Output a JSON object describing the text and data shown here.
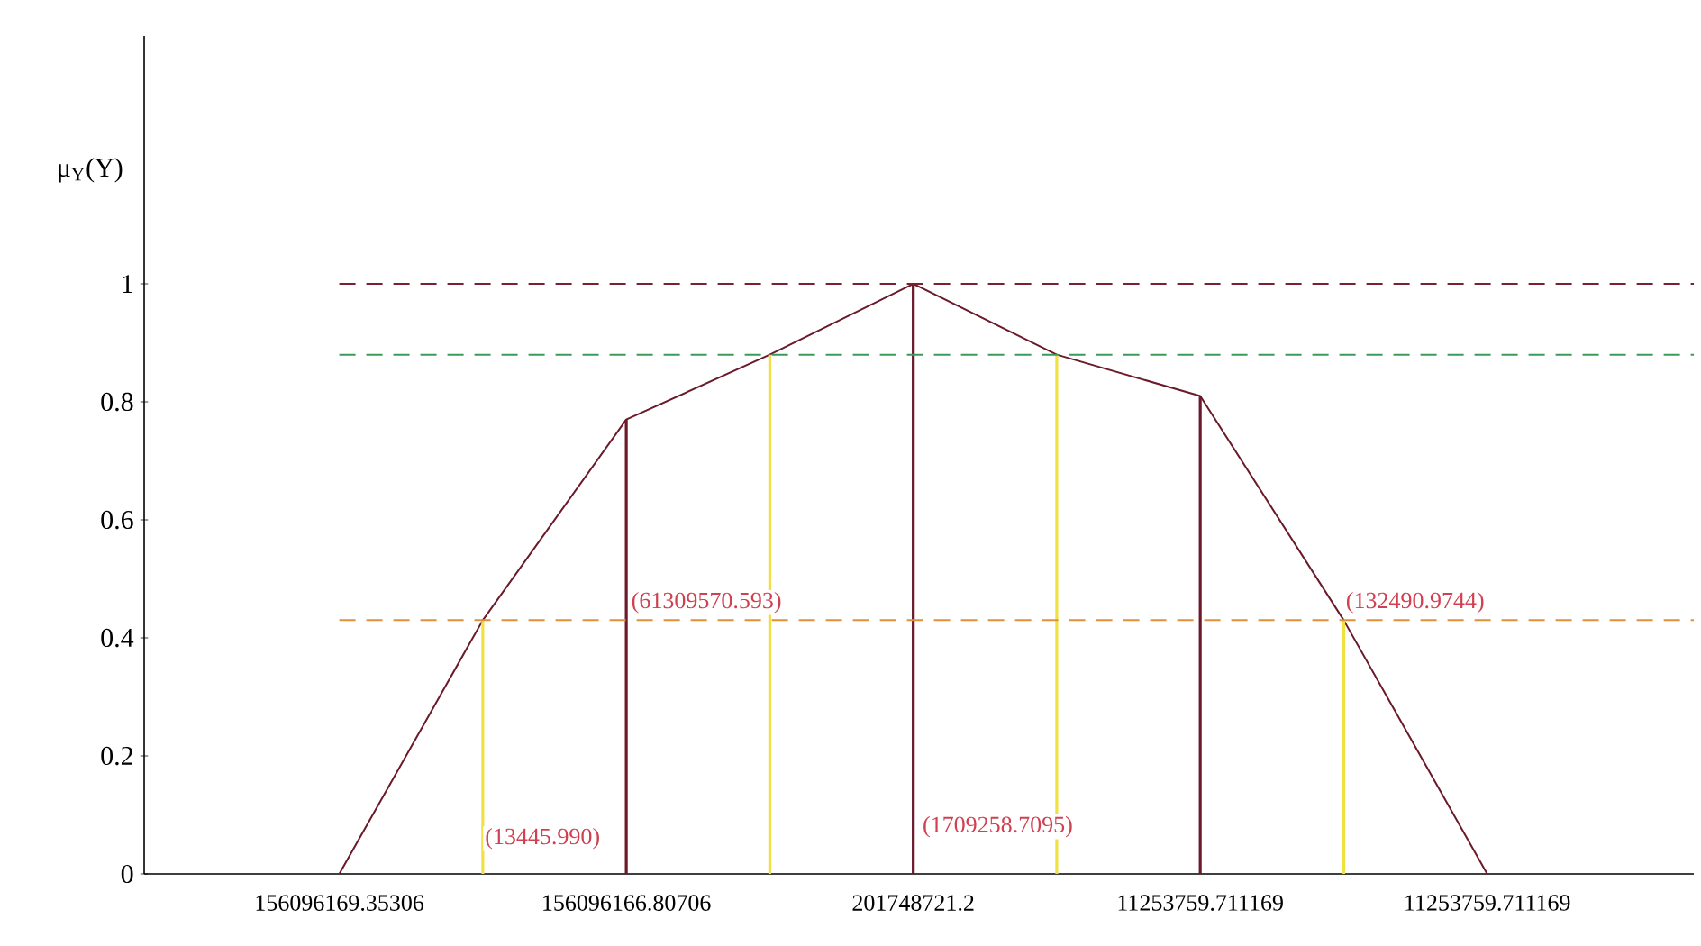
{
  "chart_data": {
    "type": "line",
    "ylabel": "μ$_{Y}$(Y)",
    "categories": [
      "156096169.35306",
      null,
      "156096166.80706",
      null,
      "201748721.2",
      null,
      "11253759.711169",
      null,
      "11253759.711169"
    ],
    "series": [
      {
        "color": "#6b1a2a",
        "values": [
          0,
          0.43,
          0.77,
          0.88,
          1,
          0.88,
          0.81,
          0.43,
          0
        ]
      },
      {
        "type": "bar",
        "colors": [
          "#6b1a2a",
          "#f0e040",
          "#6b1a2a",
          "#f0e040",
          "#6b1a2a",
          "#f0e040",
          "#6b1a2a",
          "#f0e040",
          "#6b1a2a"
        ],
        "values": [
          null,
          0.43,
          0.77,
          0.88,
          1,
          0.88,
          0.81,
          0.43,
          null
        ]
      }
    ],
    "ylim": [
      0,
      1.42
    ],
    "yticks": [
      0,
      0.2,
      0.4,
      0.6,
      0.8,
      1
    ],
    "ref_lines": [
      {
        "axis": "y",
        "value": 1,
        "color": "#7a2030",
        "line_style": "dashed"
      },
      {
        "axis": "y",
        "value": 0.88,
        "color": "#3a9a5a",
        "line_style": "dashed"
      },
      {
        "axis": "y",
        "value": 0.43,
        "color": "#e0903a",
        "line_style": "dashed"
      }
    ],
    "annotations": [
      "(13445.990)",
      "(61309570.593)",
      "(1709258.7095)",
      "(132490.9744)"
    ],
    "grid": false
  }
}
